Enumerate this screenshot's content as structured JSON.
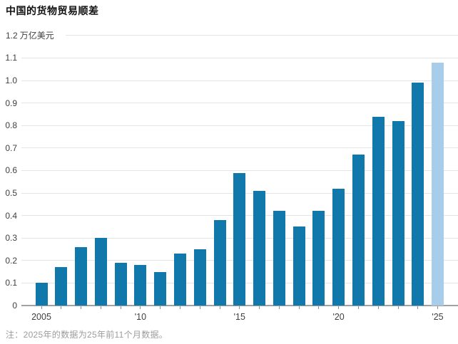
{
  "page": {
    "title": "中国的货物贸易顺差",
    "note": "注：2025年的数据为25年前11个月数据。"
  },
  "chart_data": {
    "type": "bar",
    "title": "中国的货物贸易顺差",
    "unit_label": "万亿美元",
    "categories": [
      "2005",
      "2006",
      "2007",
      "2008",
      "2009",
      "2010",
      "2011",
      "2012",
      "2013",
      "2014",
      "2015",
      "2016",
      "2017",
      "2018",
      "2019",
      "2020",
      "2021",
      "2022",
      "2023",
      "2024",
      "2025"
    ],
    "values": [
      0.1,
      0.17,
      0.26,
      0.3,
      0.19,
      0.18,
      0.15,
      0.23,
      0.25,
      0.38,
      0.59,
      0.51,
      0.42,
      0.35,
      0.42,
      0.52,
      0.67,
      0.84,
      0.82,
      0.99,
      1.08
    ],
    "highlight_index": 20,
    "highlight_meaning": "2025年前11个月数据",
    "ylim": [
      0,
      1.2
    ],
    "y_ticks": [
      "0",
      "0.1",
      "0.2",
      "0.3",
      "0.4",
      "0.5",
      "0.6",
      "0.7",
      "0.8",
      "0.9",
      "1.0",
      "1.1",
      "1.2"
    ],
    "x_tick_labels": [
      {
        "index": 0,
        "label": "2005"
      },
      {
        "index": 5,
        "label": "'10"
      },
      {
        "index": 10,
        "label": "'15"
      },
      {
        "index": 15,
        "label": "'20"
      },
      {
        "index": 20,
        "label": "'25"
      }
    ],
    "grid": true,
    "legend": "none",
    "colors": {
      "bar": "#1178ab",
      "highlight": "#a7cdeb",
      "gridline": "#e4e4e4",
      "axis": "#a0a0a0",
      "title_text": "#111111",
      "axis_label_text": "#3f3f3f",
      "note_text": "#9c9c9c"
    }
  }
}
